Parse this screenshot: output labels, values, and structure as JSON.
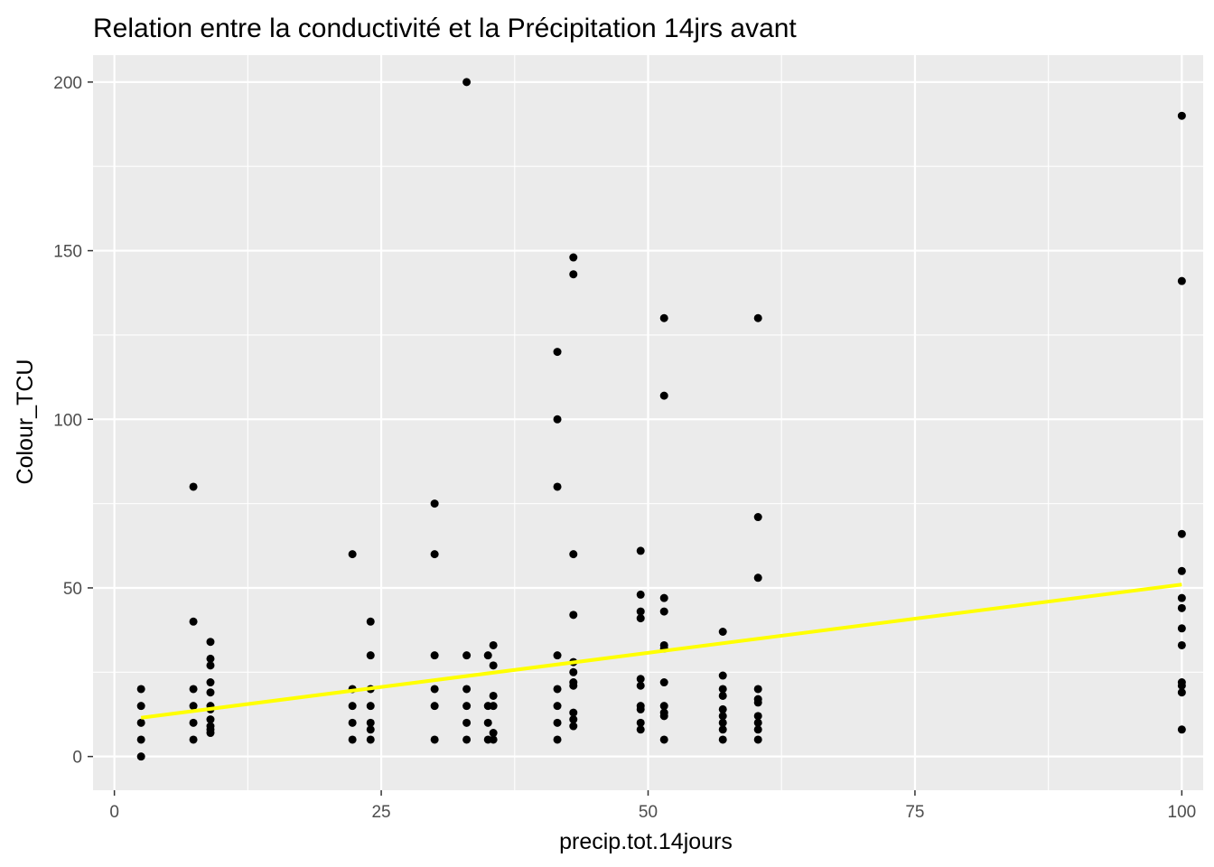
{
  "chart_data": {
    "type": "scatter",
    "title": "Relation entre la conductivité et la Précipitation 14jrs avant",
    "xlabel": "precip.tot.14jours",
    "ylabel": "Colour_TCU",
    "xlim": [
      -2,
      102
    ],
    "ylim": [
      -10,
      208
    ],
    "x_ticks": [
      0,
      25,
      50,
      75,
      100
    ],
    "y_ticks": [
      0,
      50,
      100,
      150,
      200
    ],
    "x_tick_labels": [
      "0",
      "25",
      "50",
      "75",
      "100"
    ],
    "y_tick_labels": [
      "0",
      "50",
      "100",
      "150",
      "200"
    ],
    "grid": true,
    "panel_background": "#ebebeb",
    "grid_color": "#ffffff",
    "point_color": "#000000",
    "trend_color": "#ffff00",
    "trend_line": {
      "type": "linear",
      "x": [
        2.5,
        100
      ],
      "y": [
        11.5,
        51
      ]
    },
    "series": [
      {
        "points": [
          [
            2.5,
            20
          ],
          [
            2.5,
            15
          ],
          [
            2.5,
            10
          ],
          [
            2.5,
            5
          ],
          [
            2.5,
            0
          ],
          [
            7.4,
            80
          ],
          [
            7.4,
            40
          ],
          [
            7.4,
            20
          ],
          [
            7.4,
            15
          ],
          [
            7.4,
            10
          ],
          [
            7.4,
            5
          ],
          [
            9,
            34
          ],
          [
            9,
            29
          ],
          [
            9,
            27
          ],
          [
            9,
            22
          ],
          [
            9,
            19
          ],
          [
            9,
            15
          ],
          [
            9,
            14
          ],
          [
            9,
            11
          ],
          [
            9,
            9
          ],
          [
            9,
            8
          ],
          [
            9,
            7
          ],
          [
            22.3,
            60
          ],
          [
            22.3,
            20
          ],
          [
            22.3,
            15
          ],
          [
            22.3,
            10
          ],
          [
            22.3,
            5
          ],
          [
            24,
            40
          ],
          [
            24,
            30
          ],
          [
            24,
            20
          ],
          [
            24,
            15
          ],
          [
            24,
            10
          ],
          [
            24,
            8
          ],
          [
            24,
            5
          ],
          [
            30,
            75
          ],
          [
            30,
            60
          ],
          [
            30,
            30
          ],
          [
            30,
            20
          ],
          [
            30,
            15
          ],
          [
            30,
            5
          ],
          [
            33,
            200
          ],
          [
            33,
            30
          ],
          [
            33,
            20
          ],
          [
            33,
            15
          ],
          [
            33,
            10
          ],
          [
            33,
            5
          ],
          [
            35,
            30
          ],
          [
            35,
            15
          ],
          [
            35,
            10
          ],
          [
            35,
            5
          ],
          [
            35.5,
            33
          ],
          [
            35.5,
            27
          ],
          [
            35.5,
            18
          ],
          [
            35.5,
            15
          ],
          [
            35.5,
            7
          ],
          [
            35.5,
            5
          ],
          [
            41.5,
            120
          ],
          [
            41.5,
            100
          ],
          [
            41.5,
            80
          ],
          [
            41.5,
            30
          ],
          [
            41.5,
            20
          ],
          [
            41.5,
            15
          ],
          [
            41.5,
            10
          ],
          [
            41.5,
            5
          ],
          [
            43,
            148
          ],
          [
            43,
            143
          ],
          [
            43,
            60
          ],
          [
            43,
            42
          ],
          [
            43,
            28
          ],
          [
            43,
            25
          ],
          [
            43,
            22
          ],
          [
            43,
            21
          ],
          [
            43,
            13
          ],
          [
            43,
            11
          ],
          [
            43,
            9
          ],
          [
            49.3,
            61
          ],
          [
            49.3,
            48
          ],
          [
            49.3,
            43
          ],
          [
            49.3,
            41
          ],
          [
            49.3,
            23
          ],
          [
            49.3,
            21
          ],
          [
            49.3,
            15
          ],
          [
            49.3,
            14
          ],
          [
            49.3,
            10
          ],
          [
            49.3,
            8
          ],
          [
            51.5,
            130
          ],
          [
            51.5,
            107
          ],
          [
            51.5,
            47
          ],
          [
            51.5,
            43
          ],
          [
            51.5,
            33
          ],
          [
            51.5,
            32
          ],
          [
            51.5,
            22
          ],
          [
            51.5,
            15
          ],
          [
            51.5,
            13
          ],
          [
            51.5,
            12
          ],
          [
            51.5,
            5
          ],
          [
            57,
            37
          ],
          [
            57,
            24
          ],
          [
            57,
            20
          ],
          [
            57,
            18
          ],
          [
            57,
            14
          ],
          [
            57,
            12
          ],
          [
            57,
            10
          ],
          [
            57,
            8
          ],
          [
            57,
            5
          ],
          [
            60.3,
            130
          ],
          [
            60.3,
            71
          ],
          [
            60.3,
            53
          ],
          [
            60.3,
            20
          ],
          [
            60.3,
            17
          ],
          [
            60.3,
            16
          ],
          [
            60.3,
            12
          ],
          [
            60.3,
            10
          ],
          [
            60.3,
            8
          ],
          [
            60.3,
            5
          ],
          [
            100,
            190
          ],
          [
            100,
            141
          ],
          [
            100,
            66
          ],
          [
            100,
            55
          ],
          [
            100,
            47
          ],
          [
            100,
            44
          ],
          [
            100,
            38
          ],
          [
            100,
            33
          ],
          [
            100,
            22
          ],
          [
            100,
            21
          ],
          [
            100,
            19
          ],
          [
            100,
            8
          ]
        ]
      }
    ]
  }
}
